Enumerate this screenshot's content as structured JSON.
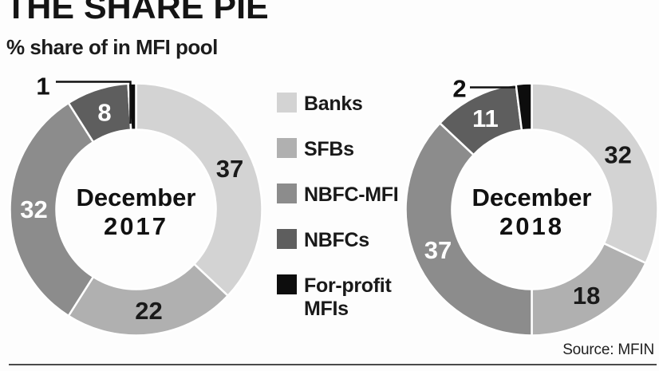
{
  "header": {
    "title": "THE SHARE PIE",
    "subtitle": "% share of in MFI pool"
  },
  "source": "Source: MFIN",
  "legend": {
    "position": "center-between-charts",
    "items": [
      {
        "label": "Banks",
        "color": "#d3d3d3"
      },
      {
        "label": "SFBs",
        "color": "#b0b0b0"
      },
      {
        "label": "NBFC-MFI",
        "color": "#8c8c8c"
      },
      {
        "label": "NBFCs",
        "color": "#5e5e5e"
      },
      {
        "label": "For-profit MFIs",
        "color": "#0d0d0d"
      }
    ]
  },
  "chart_data": [
    {
      "type": "pie",
      "style": "donut",
      "center_label_line1": "December",
      "center_label_line2": "2017",
      "categories": [
        "Banks",
        "SFBs",
        "NBFC-MFI",
        "NBFCs",
        "For-profit MFIs"
      ],
      "values": [
        37,
        22,
        32,
        8,
        1
      ],
      "colors": [
        "#d3d3d3",
        "#b0b0b0",
        "#8c8c8c",
        "#5e5e5e",
        "#0d0d0d"
      ],
      "unit": "% share of MFI pool",
      "start_angle_deg": 0,
      "direction": "clockwise",
      "donut_hole_ratio": 0.63,
      "callout_category": "For-profit MFIs"
    },
    {
      "type": "pie",
      "style": "donut",
      "center_label_line1": "December",
      "center_label_line2": "2018",
      "categories": [
        "Banks",
        "SFBs",
        "NBFC-MFI",
        "NBFCs",
        "For-profit MFIs"
      ],
      "values": [
        32,
        18,
        37,
        11,
        2
      ],
      "colors": [
        "#d3d3d3",
        "#b0b0b0",
        "#8c8c8c",
        "#5e5e5e",
        "#0d0d0d"
      ],
      "unit": "% share of MFI pool",
      "start_angle_deg": 0,
      "direction": "clockwise",
      "donut_hole_ratio": 0.63,
      "callout_category": "For-profit MFIs"
    }
  ]
}
